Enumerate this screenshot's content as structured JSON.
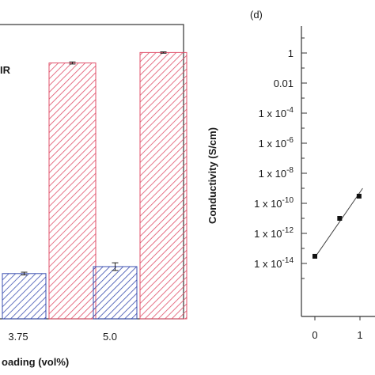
{
  "chart_data": [
    {
      "type": "bar",
      "categories": [
        "3.75",
        "5.0"
      ],
      "legend_fragment": "IR",
      "series": [
        {
          "values": [
            0.26,
            0.3
          ],
          "errors": [
            0.008,
            0.022
          ],
          "color": "#3b4fb0",
          "pattern": "blue-hatch"
        },
        {
          "values": [
            1.47,
            1.53
          ],
          "errors": [
            0.006,
            0.004
          ],
          "color": "#e0506a",
          "pattern": "red-hatch"
        }
      ],
      "xlabel": "oading (vol%)",
      "ylabel": ""
    },
    {
      "type": "scatter",
      "panel_label": "(d)",
      "ylabel": "Conductivity (S/cm)",
      "yscale": "log",
      "ylim": [
        1e-15,
        100
      ],
      "x_ticks": [
        "0",
        "1"
      ],
      "y_ticks": [
        {
          "text": "1",
          "value": 1
        },
        {
          "text": "0.01",
          "value": 0.01
        },
        {
          "base": "1 x 10",
          "exp": "-4",
          "value": 0.0001
        },
        {
          "base": "1 x 10",
          "exp": "-6",
          "value": 1e-06
        },
        {
          "base": "1 x 10",
          "exp": "-8",
          "value": 1e-08
        },
        {
          "base": "1 x 10",
          "exp": "-10",
          "value": 1e-10
        },
        {
          "base": "1 x 10",
          "exp": "-12",
          "value": 1e-12
        },
        {
          "base": "1 x 10",
          "exp": "-14",
          "value": 1e-14
        }
      ],
      "points": [
        {
          "x": 0.0,
          "y": 3e-14
        },
        {
          "x": 0.55,
          "y": 1e-11
        },
        {
          "x": 0.98,
          "y": 3e-10
        }
      ],
      "fit_line": [
        [
          0.0,
          2.5e-14
        ],
        [
          0.55,
          6e-12
        ],
        [
          1.06,
          1e-09
        ]
      ]
    }
  ]
}
